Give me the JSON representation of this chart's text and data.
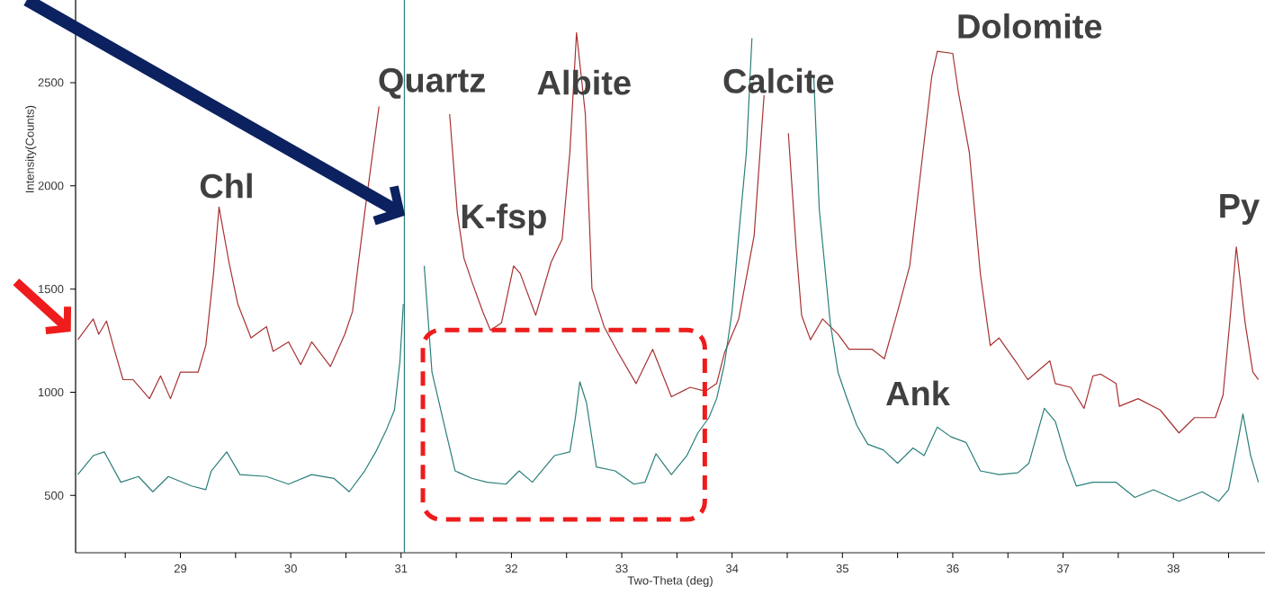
{
  "chart_data": {
    "type": "line",
    "xlabel": "Two-Theta (deg)",
    "ylabel": "Intensity(Counts)",
    "xlim": [
      28.05,
      38.83
    ],
    "ylim": [
      223,
      2900
    ],
    "xticks": [
      {
        "value": 28.5,
        "label": null
      },
      29,
      {
        "value": 29.5,
        "label": null
      },
      30,
      {
        "value": 30.5,
        "label": null
      },
      31,
      {
        "value": 31.5,
        "label": null
      },
      32,
      {
        "value": 32.5,
        "label": null
      },
      33,
      {
        "value": 33.5,
        "label": null
      },
      34,
      {
        "value": 34.5,
        "label": null
      },
      35,
      {
        "value": 35.5,
        "label": null
      },
      36,
      {
        "value": 36.5,
        "label": null
      },
      37,
      {
        "value": 37.5,
        "label": null
      },
      38,
      {
        "value": 38.5,
        "label": null
      }
    ],
    "yticks": [
      500,
      1000,
      1500,
      2000,
      2500
    ],
    "series": [
      {
        "color": "#a83232",
        "x": [
          28.07,
          28.21,
          28.26,
          28.33,
          28.4,
          28.48,
          28.57,
          28.72,
          28.82,
          28.91,
          29.0,
          29.16,
          29.23,
          29.3,
          29.35,
          29.44,
          29.52,
          29.64,
          29.78,
          29.84,
          29.98,
          30.09,
          30.19,
          30.36,
          30.49,
          30.56,
          30.61,
          30.67,
          30.73,
          30.8,
          30.87,
          31.1,
          31.39,
          31.44,
          31.51,
          31.57,
          31.64,
          31.74,
          31.81,
          31.91,
          32.02,
          32.08,
          32.22,
          32.36,
          32.46,
          32.53,
          32.59,
          32.67,
          32.73,
          32.84,
          32.97,
          33.13,
          33.28,
          33.45,
          33.62,
          33.76,
          33.86,
          33.93,
          34.06,
          34.2,
          34.29,
          34.32,
          34.38,
          34.44,
          34.51,
          34.58,
          34.63,
          34.71,
          34.82,
          34.96,
          35.06,
          35.27,
          35.38,
          35.5,
          35.61,
          35.71,
          35.81,
          35.86,
          36.0,
          36.05,
          36.15,
          36.25,
          36.34,
          36.42,
          36.59,
          36.68,
          36.88,
          36.93,
          37.07,
          37.19,
          37.27,
          37.34,
          37.48,
          37.51,
          37.68,
          37.88,
          38.05,
          38.19,
          38.38,
          38.45,
          38.51,
          38.57,
          38.65,
          38.72,
          38.77
        ],
        "values": [
          1254,
          1355,
          1281,
          1345,
          1208,
          1061,
          1061,
          969,
          1079,
          969,
          1097,
          1097,
          1226,
          1575,
          1897,
          1630,
          1428,
          1263,
          1318,
          1198,
          1244,
          1134,
          1244,
          1125,
          1281,
          1391,
          1612,
          1869,
          2108,
          2384,
          null,
          null,
          null,
          2347,
          1869,
          1649,
          1538,
          1391,
          1300,
          1336,
          1612,
          1575,
          1373,
          1630,
          1741,
          2163,
          2742,
          2347,
          1502,
          1318,
          1189,
          1042,
          1208,
          978,
          1024,
          1005,
          1042,
          1189,
          1355,
          1759,
          2439,
          null,
          null,
          null,
          2255,
          1704,
          1373,
          1254,
          1355,
          1281,
          1208,
          1208,
          1162,
          1391,
          1612,
          2071,
          2531,
          2651,
          2641,
          2457,
          2163,
          1575,
          1226,
          1263,
          1134,
          1061,
          1152,
          1042,
          1024,
          922,
          1079,
          1088,
          1042,
          932,
          969,
          914,
          803,
          877,
          877,
          987,
          1336,
          1704,
          1336,
          1097,
          1061
        ]
      },
      {
        "color": "#2a7f7a",
        "x": [
          28.07,
          28.21,
          28.31,
          28.46,
          28.62,
          28.75,
          28.89,
          29.1,
          29.23,
          29.28,
          29.42,
          29.54,
          29.78,
          29.98,
          30.19,
          30.39,
          30.53,
          30.67,
          30.77,
          30.87,
          30.94,
          30.99,
          31.02,
          31.03,
          31.1,
          31.16,
          31.21,
          31.28,
          31.4,
          31.49,
          31.64,
          31.78,
          31.95,
          32.07,
          32.19,
          32.39,
          32.53,
          32.58,
          32.62,
          32.68,
          32.77,
          32.94,
          33.11,
          33.21,
          33.31,
          33.45,
          33.59,
          33.69,
          33.79,
          33.86,
          33.93,
          34.0,
          34.06,
          34.13,
          34.18,
          34.2,
          34.45,
          34.72,
          34.74,
          34.79,
          34.84,
          34.89,
          34.96,
          35.03,
          35.13,
          35.23,
          35.37,
          35.5,
          35.64,
          35.74,
          35.86,
          35.98,
          36.12,
          36.25,
          36.42,
          36.59,
          36.69,
          36.83,
          36.93,
          37.03,
          37.12,
          37.27,
          37.48,
          37.65,
          37.82,
          38.05,
          38.26,
          38.41,
          38.5,
          38.56,
          38.63,
          38.7,
          38.77
        ],
        "values": [
          601,
          693,
          711,
          564,
          592,
          518,
          592,
          546,
          528,
          619,
          711,
          601,
          592,
          555,
          601,
          583,
          518,
          619,
          711,
          822,
          914,
          1152,
          1428,
          null,
          null,
          null,
          1612,
          1097,
          822,
          619,
          583,
          564,
          555,
          619,
          564,
          693,
          711,
          877,
          1051,
          950,
          638,
          619,
          555,
          564,
          702,
          601,
          693,
          803,
          877,
          969,
          1134,
          1391,
          1759,
          2163,
          2715,
          null,
          null,
          null,
          2531,
          1888,
          1612,
          1336,
          1097,
          987,
          840,
          748,
          721,
          656,
          730,
          693,
          831,
          785,
          757,
          619,
          601,
          610,
          656,
          922,
          858,
          675,
          546,
          564,
          564,
          491,
          528,
          472,
          518,
          472,
          528,
          693,
          895,
          693,
          564
        ]
      }
    ],
    "ref_lines": [
      {
        "axis": "x",
        "value": 31.03,
        "color": "#2a7f7a"
      }
    ],
    "annotations": [
      "Chl",
      "Quartz",
      "Albite",
      "K-fsp",
      "Calcite",
      "Dolomite",
      "Ank",
      "Py"
    ]
  }
}
